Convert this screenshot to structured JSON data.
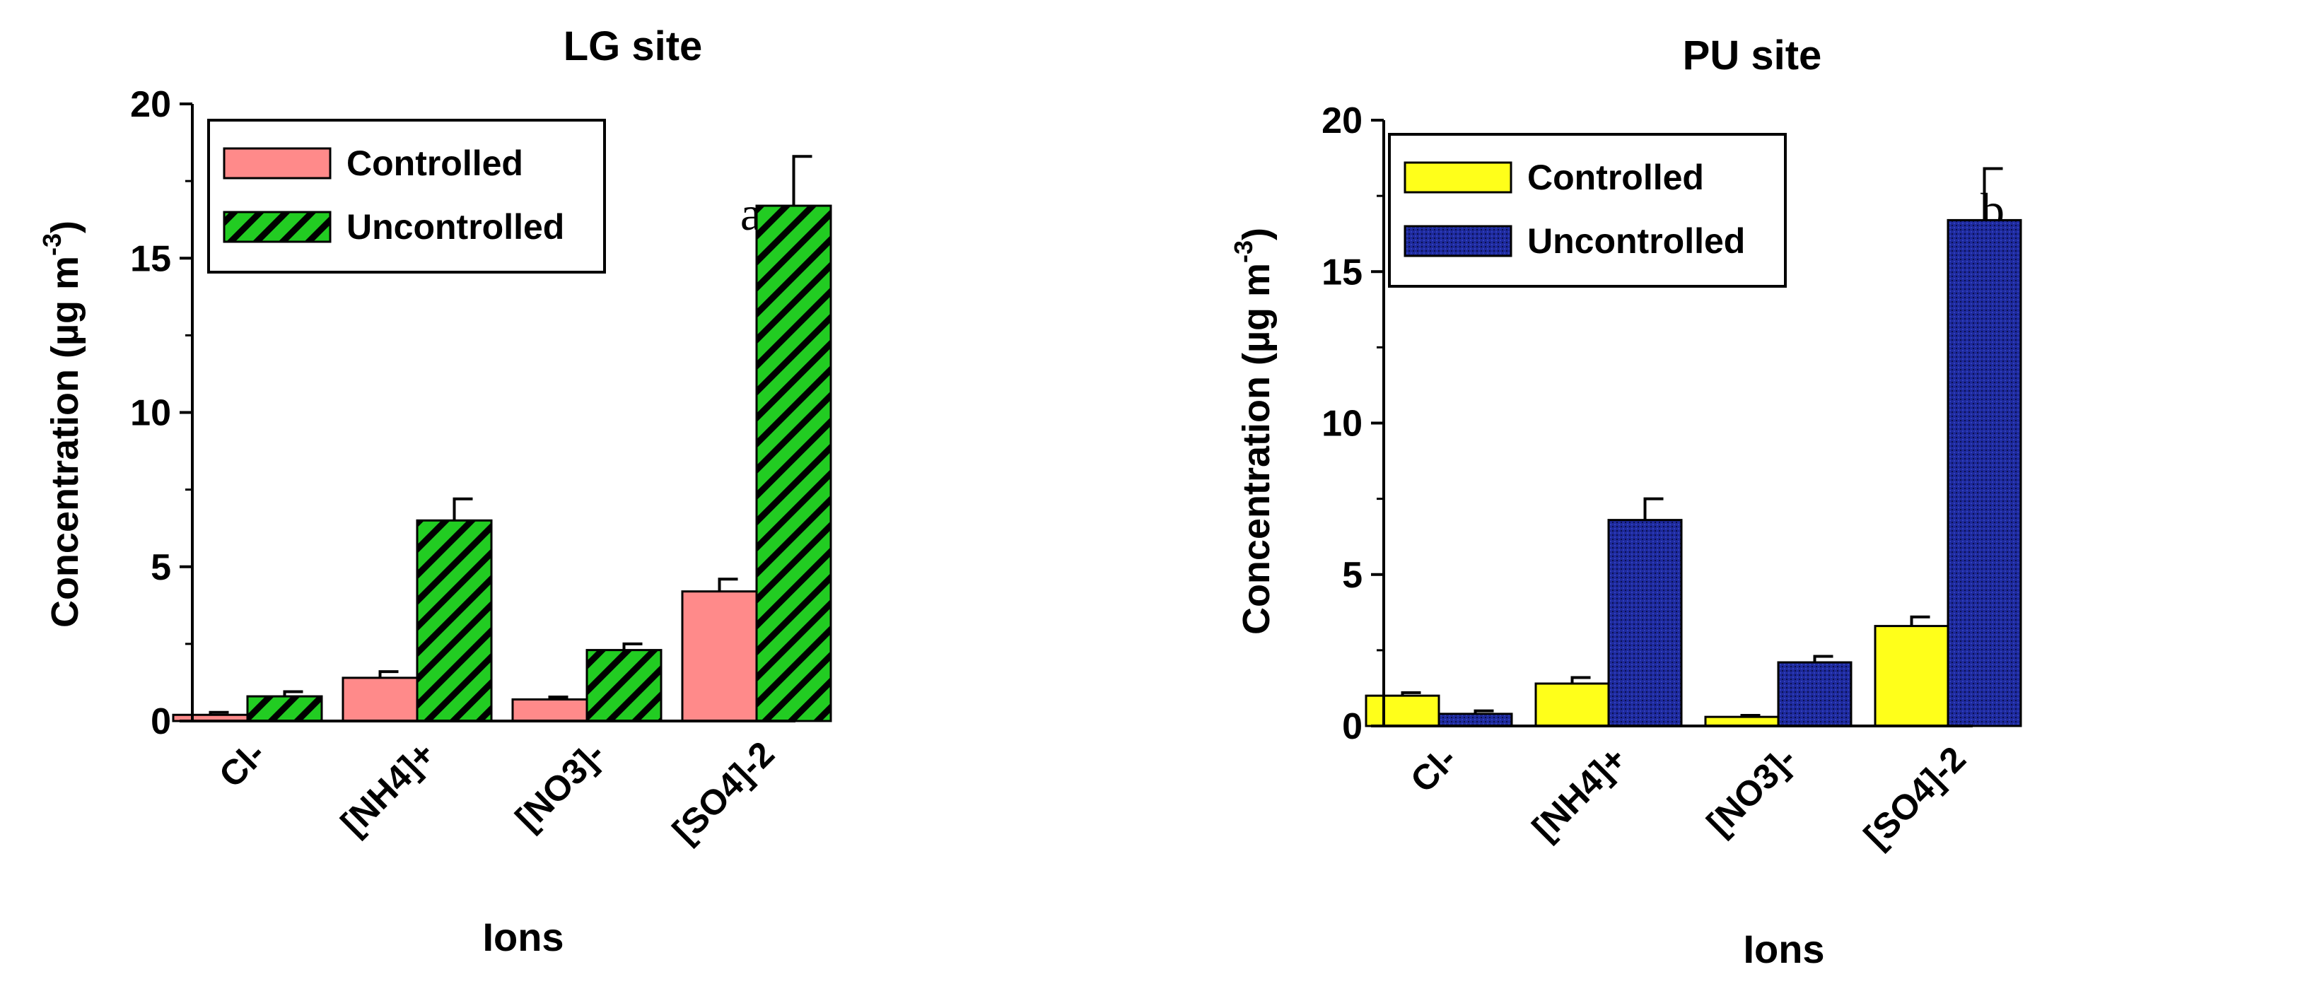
{
  "chart_data": [
    {
      "type": "bar",
      "title": "LG site",
      "xlabel": "Ions",
      "ylabel": "Concentration (µg m",
      "ylabel_exp": "-3",
      "ylabel_close": ")",
      "annotation": "a",
      "categories": [
        "Cl-",
        "[NH4]+",
        "[NO3]-",
        "[SO4]-2"
      ],
      "ylim": [
        0,
        20
      ],
      "yticks": [
        0,
        5,
        10,
        15,
        20
      ],
      "grid": false,
      "legend_position": "top-left",
      "series": [
        {
          "name": "Controlled",
          "values": [
            0.2,
            1.4,
            0.7,
            4.2
          ],
          "errors": [
            0.08,
            0.2,
            0.08,
            0.4
          ],
          "color": "#ff8a8a",
          "pattern": "solid"
        },
        {
          "name": "Uncontrolled",
          "values": [
            0.8,
            6.5,
            2.3,
            16.7
          ],
          "errors": [
            0.15,
            0.7,
            0.2,
            1.6
          ],
          "color": "#22cc22",
          "pattern": "diagonal-hatch"
        }
      ]
    },
    {
      "type": "bar",
      "title": "PU site",
      "xlabel": "Ions",
      "ylabel": "Concentration (µg m",
      "ylabel_exp": "-3",
      "ylabel_close": ")",
      "annotation": "b",
      "categories": [
        "Cl-",
        "[NH4]+",
        "[NO3]-",
        "[SO4]-2"
      ],
      "ylim": [
        0,
        20
      ],
      "yticks": [
        0,
        5,
        10,
        15,
        20
      ],
      "grid": false,
      "legend_position": "top-left",
      "series": [
        {
          "name": "Controlled",
          "values": [
            1.0,
            1.4,
            0.3,
            3.3
          ],
          "errors": [
            0.1,
            0.2,
            0.05,
            0.3
          ],
          "color": "#ffff1a",
          "pattern": "solid"
        },
        {
          "name": "Uncontrolled",
          "values": [
            0.4,
            6.8,
            2.1,
            16.7
          ],
          "errors": [
            0.1,
            0.7,
            0.2,
            1.7
          ],
          "color": "#1e2a9c",
          "pattern": "fine-dots"
        }
      ]
    }
  ]
}
